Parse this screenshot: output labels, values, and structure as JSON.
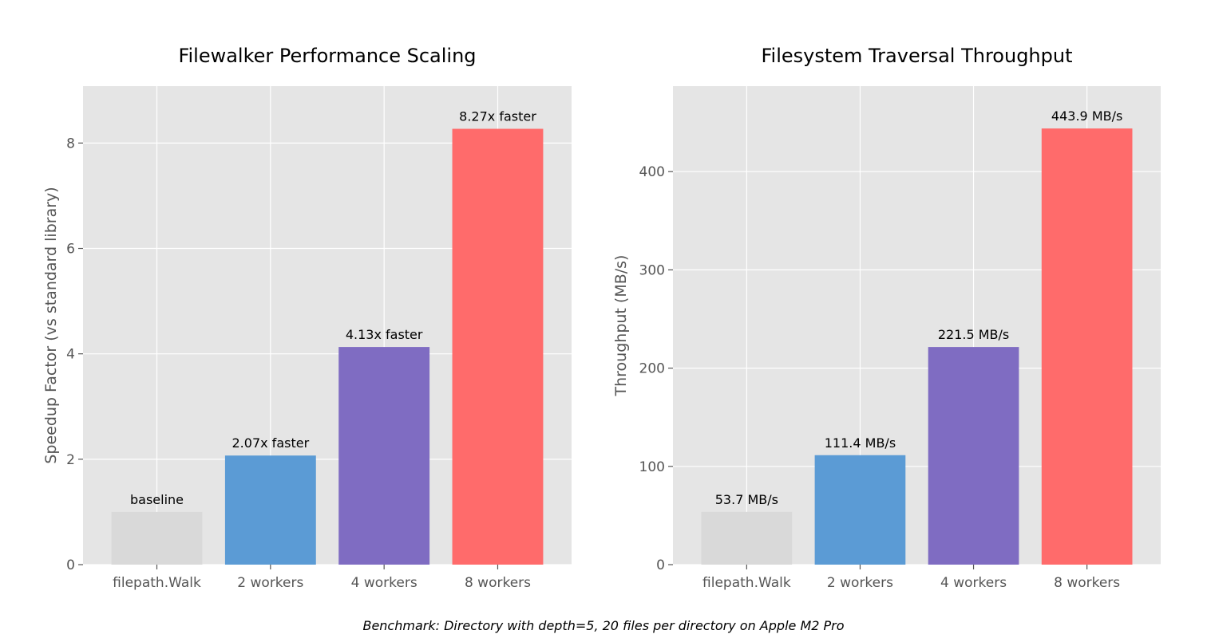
{
  "chart_data": [
    {
      "type": "bar",
      "title": "Filewalker Performance Scaling",
      "xlabel": "",
      "ylabel": "Speedup Factor (vs standard library)",
      "categories": [
        "filepath.Walk",
        "2 workers",
        "4 workers",
        "8 workers"
      ],
      "values": [
        1.0,
        2.07,
        4.13,
        8.27
      ],
      "data_labels": [
        "baseline",
        "2.07x faster",
        "4.13x faster",
        "8.27x faster"
      ],
      "colors": [
        "#d9d9d9",
        "#5b9bd5",
        "#7f6cc2",
        "#ff6b6b"
      ],
      "ylim": [
        0,
        9.08
      ],
      "yticks": [
        0,
        2,
        4,
        6,
        8
      ],
      "ytick_labels": [
        "0",
        "2",
        "4",
        "6",
        "8"
      ],
      "grid": true
    },
    {
      "type": "bar",
      "title": "Filesystem Traversal Throughput",
      "xlabel": "",
      "ylabel": "Throughput (MB/s)",
      "categories": [
        "filepath.Walk",
        "2 workers",
        "4 workers",
        "8 workers"
      ],
      "values": [
        53.7,
        111.4,
        221.5,
        443.9
      ],
      "data_labels": [
        "53.7 MB/s",
        "111.4 MB/s",
        "221.5 MB/s",
        "443.9 MB/s"
      ],
      "colors": [
        "#d9d9d9",
        "#5b9bd5",
        "#7f6cc2",
        "#ff6b6b"
      ],
      "ylim": [
        0,
        487
      ],
      "yticks": [
        0,
        100,
        200,
        300,
        400
      ],
      "ytick_labels": [
        "0",
        "100",
        "200",
        "300",
        "400"
      ],
      "grid": true
    }
  ],
  "footnote": "Benchmark: Directory with depth=5, 20 files per directory on Apple M2 Pro",
  "style": {
    "plot_background": "#e5e5e5",
    "grid_color": "#ffffff",
    "tick_color": "#555555"
  }
}
